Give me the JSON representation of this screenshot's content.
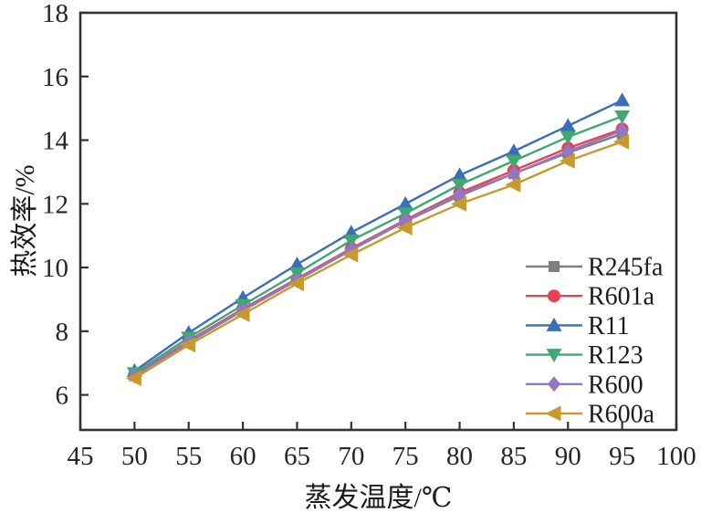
{
  "figure": {
    "background": "#ffffff",
    "frame_color": "#333333",
    "text_color": "#262626"
  },
  "chart_data": {
    "type": "line",
    "title": "",
    "xlabel": "蒸发温度/℃",
    "ylabel": "热效率/%",
    "xlim": [
      45,
      100
    ],
    "ylim": [
      4.9,
      18
    ],
    "xticks": [
      45,
      50,
      55,
      60,
      65,
      70,
      75,
      80,
      85,
      90,
      95,
      100
    ],
    "yticks": [
      6,
      8,
      10,
      12,
      14,
      16,
      18
    ],
    "grid": false,
    "legend_position": "inside lower right, no box",
    "x": [
      50,
      55,
      60,
      65,
      70,
      75,
      80,
      85,
      90,
      95
    ],
    "series": [
      {
        "name": "R245fa",
        "color": "#7f7f7f",
        "marker": "square",
        "values": [
          6.6,
          7.65,
          8.65,
          9.6,
          10.55,
          11.45,
          12.25,
          12.95,
          13.6,
          14.2
        ]
      },
      {
        "name": "R601a",
        "color": "#e64250",
        "marker": "circle",
        "values": [
          6.62,
          7.7,
          8.7,
          9.65,
          10.6,
          11.5,
          12.35,
          13.05,
          13.75,
          14.35
        ]
      },
      {
        "name": "R11",
        "color": "#3a6fb7",
        "marker": "triangle-up",
        "values": [
          6.75,
          7.95,
          9.05,
          10.1,
          11.1,
          12.0,
          12.9,
          13.65,
          14.45,
          15.25
        ]
      },
      {
        "name": "R123",
        "color": "#3fa873",
        "marker": "triangle-down",
        "values": [
          6.68,
          7.8,
          8.82,
          9.82,
          10.85,
          11.7,
          12.6,
          13.35,
          14.1,
          14.75
        ]
      },
      {
        "name": "R600",
        "color": "#9277c5",
        "marker": "diamond",
        "values": [
          6.6,
          7.67,
          8.67,
          9.62,
          10.57,
          11.47,
          12.3,
          12.95,
          13.65,
          14.3
        ]
      },
      {
        "name": "R600a",
        "color": "#c8992f",
        "marker": "triangle-left",
        "values": [
          6.52,
          7.57,
          8.53,
          9.5,
          10.4,
          11.25,
          12.0,
          12.6,
          13.35,
          13.95
        ]
      }
    ]
  }
}
